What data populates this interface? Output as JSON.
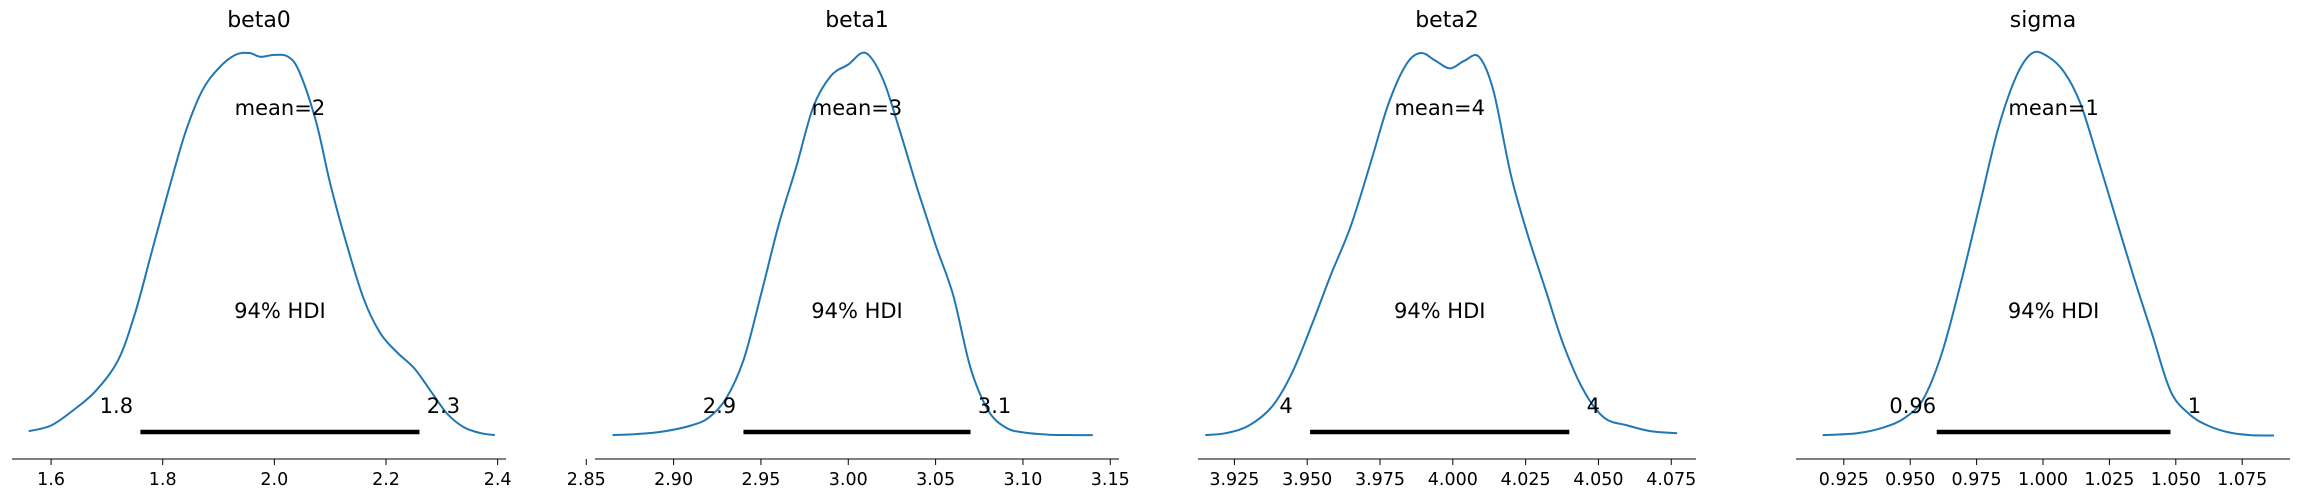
{
  "colors": {
    "density": "#1f77b4",
    "hdi_bar": "#000000",
    "axis": "#000000"
  },
  "chart_data": [
    {
      "type": "line",
      "title": "beta0",
      "mean_label": "mean=2",
      "hdi_label": "94% HDI",
      "hdi": [
        1.76,
        2.26
      ],
      "hdi_low_label": "1.8",
      "hdi_high_label": "2.3",
      "xlim": [
        1.53,
        2.415
      ],
      "xticks": [
        1.6,
        1.8,
        2.0,
        2.2,
        2.4
      ],
      "xtick_labels": [
        "1.6",
        "1.8",
        "2.0",
        "2.2",
        "2.4"
      ],
      "density_x": [
        1.56,
        1.6,
        1.64,
        1.68,
        1.72,
        1.75,
        1.78,
        1.81,
        1.84,
        1.87,
        1.9,
        1.93,
        1.955,
        1.975,
        2.0,
        2.025,
        2.045,
        2.075,
        2.1,
        2.13,
        2.16,
        2.19,
        2.22,
        2.25,
        2.28,
        2.31,
        2.34,
        2.37,
        2.395
      ],
      "density_y": [
        0.015,
        0.03,
        0.07,
        0.12,
        0.2,
        0.32,
        0.48,
        0.64,
        0.79,
        0.9,
        0.96,
        0.995,
        1.0,
        0.99,
        0.995,
        0.99,
        0.95,
        0.82,
        0.66,
        0.5,
        0.36,
        0.27,
        0.22,
        0.18,
        0.12,
        0.06,
        0.025,
        0.01,
        0.005
      ]
    },
    {
      "type": "line",
      "title": "beta1",
      "mean_label": "mean=3",
      "hdi_label": "94% HDI",
      "hdi": [
        2.94,
        3.07
      ],
      "hdi_low_label": "2.9",
      "hdi_high_label": "3.1",
      "xlim": [
        2.855,
        3.155
      ],
      "xticks": [
        2.85,
        2.9,
        2.95,
        3.0,
        3.05,
        3.1,
        3.15
      ],
      "xtick_labels": [
        "2.85",
        "2.90",
        "2.95",
        "3.00",
        "3.05",
        "3.10",
        "3.15"
      ],
      "density_x": [
        2.865,
        2.88,
        2.895,
        2.91,
        2.92,
        2.93,
        2.94,
        2.95,
        2.96,
        2.97,
        2.98,
        2.99,
        3.0,
        3.01,
        3.02,
        3.03,
        3.04,
        3.05,
        3.06,
        3.07,
        3.08,
        3.09,
        3.1,
        3.115,
        3.13,
        3.14
      ],
      "density_y": [
        0.005,
        0.008,
        0.015,
        0.03,
        0.05,
        0.1,
        0.2,
        0.37,
        0.55,
        0.7,
        0.86,
        0.94,
        0.97,
        1.0,
        0.93,
        0.79,
        0.64,
        0.5,
        0.37,
        0.18,
        0.07,
        0.025,
        0.012,
        0.006,
        0.005,
        0.005
      ]
    },
    {
      "type": "line",
      "title": "beta2",
      "mean_label": "mean=4",
      "hdi_label": "94% HDI",
      "hdi": [
        3.951,
        4.04
      ],
      "hdi_low_label": "4",
      "hdi_high_label": "4",
      "xlim": [
        3.9125,
        4.0835
      ],
      "xticks": [
        3.925,
        3.95,
        3.975,
        4.0,
        4.025,
        4.05,
        4.075
      ],
      "xtick_labels": [
        "3.925",
        "3.950",
        "3.975",
        "4.000",
        "4.025",
        "4.050",
        "4.075"
      ],
      "density_x": [
        3.915,
        3.922,
        3.93,
        3.938,
        3.945,
        3.952,
        3.958,
        3.965,
        3.972,
        3.978,
        3.984,
        3.989,
        3.994,
        3.999,
        4.004,
        4.009,
        4.014,
        4.02,
        4.026,
        4.032,
        4.038,
        4.045,
        4.052,
        4.06,
        4.068,
        4.077
      ],
      "density_y": [
        0.005,
        0.01,
        0.03,
        0.08,
        0.17,
        0.3,
        0.42,
        0.55,
        0.72,
        0.87,
        0.97,
        1.0,
        0.98,
        0.96,
        0.98,
        0.99,
        0.9,
        0.68,
        0.52,
        0.38,
        0.24,
        0.12,
        0.05,
        0.03,
        0.015,
        0.01
      ]
    },
    {
      "type": "line",
      "title": "sigma",
      "mean_label": "mean=1",
      "hdi_label": "94% HDI",
      "hdi": [
        0.96,
        1.048
      ],
      "hdi_low_label": "0.96",
      "hdi_high_label": "1",
      "xlim": [
        0.907,
        1.093
      ],
      "xticks": [
        0.925,
        0.95,
        0.975,
        1.0,
        1.025,
        1.05,
        1.075
      ],
      "xtick_labels": [
        "0.925",
        "0.950",
        "0.975",
        "1.000",
        "1.025",
        "1.050",
        "1.075"
      ],
      "density_x": [
        0.917,
        0.93,
        0.94,
        0.948,
        0.955,
        0.962,
        0.969,
        0.976,
        0.983,
        0.99,
        0.996,
        1.002,
        1.008,
        1.014,
        1.02,
        1.027,
        1.034,
        1.041,
        1.048,
        1.055,
        1.062,
        1.07,
        1.078,
        1.087
      ],
      "density_y": [
        0.005,
        0.01,
        0.025,
        0.05,
        0.1,
        0.22,
        0.4,
        0.6,
        0.8,
        0.94,
        1.0,
        0.99,
        0.95,
        0.87,
        0.74,
        0.58,
        0.42,
        0.27,
        0.12,
        0.06,
        0.03,
        0.012,
        0.005,
        0.004
      ]
    }
  ]
}
